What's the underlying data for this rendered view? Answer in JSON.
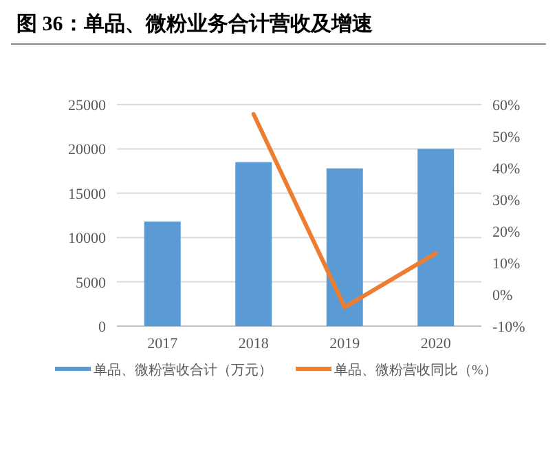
{
  "chart_data": {
    "type": "bar",
    "title": "图 36：单品、微粉业务合计营收及增速",
    "categories": [
      "2017",
      "2018",
      "2019",
      "2020"
    ],
    "series": [
      {
        "name": "单品、微粉营收合计（万元）",
        "color": "#5b9bd5",
        "values": [
          11800,
          18500,
          17800,
          20000
        ]
      },
      {
        "name": "单品、微粉营收同比（%）",
        "type": "line",
        "axis": "y2",
        "color": "#ed7d31",
        "values": [
          null,
          57,
          -4,
          13
        ]
      }
    ],
    "ylim": [
      0,
      25000
    ],
    "yticks": [
      0,
      5000,
      10000,
      15000,
      20000,
      25000
    ],
    "y2lim": [
      -10,
      60
    ],
    "y2ticks": [
      {
        "value": -10,
        "label": "-10%"
      },
      {
        "value": 0,
        "label": "0%"
      },
      {
        "value": 10,
        "label": "10%"
      },
      {
        "value": 20,
        "label": "20%"
      },
      {
        "value": 30,
        "label": "30%"
      },
      {
        "value": 40,
        "label": "40%"
      },
      {
        "value": 50,
        "label": "50%"
      },
      {
        "value": 60,
        "label": "60%"
      }
    ],
    "grid": "y",
    "legend": "bottom",
    "marker": "none",
    "line_style": "solid"
  }
}
